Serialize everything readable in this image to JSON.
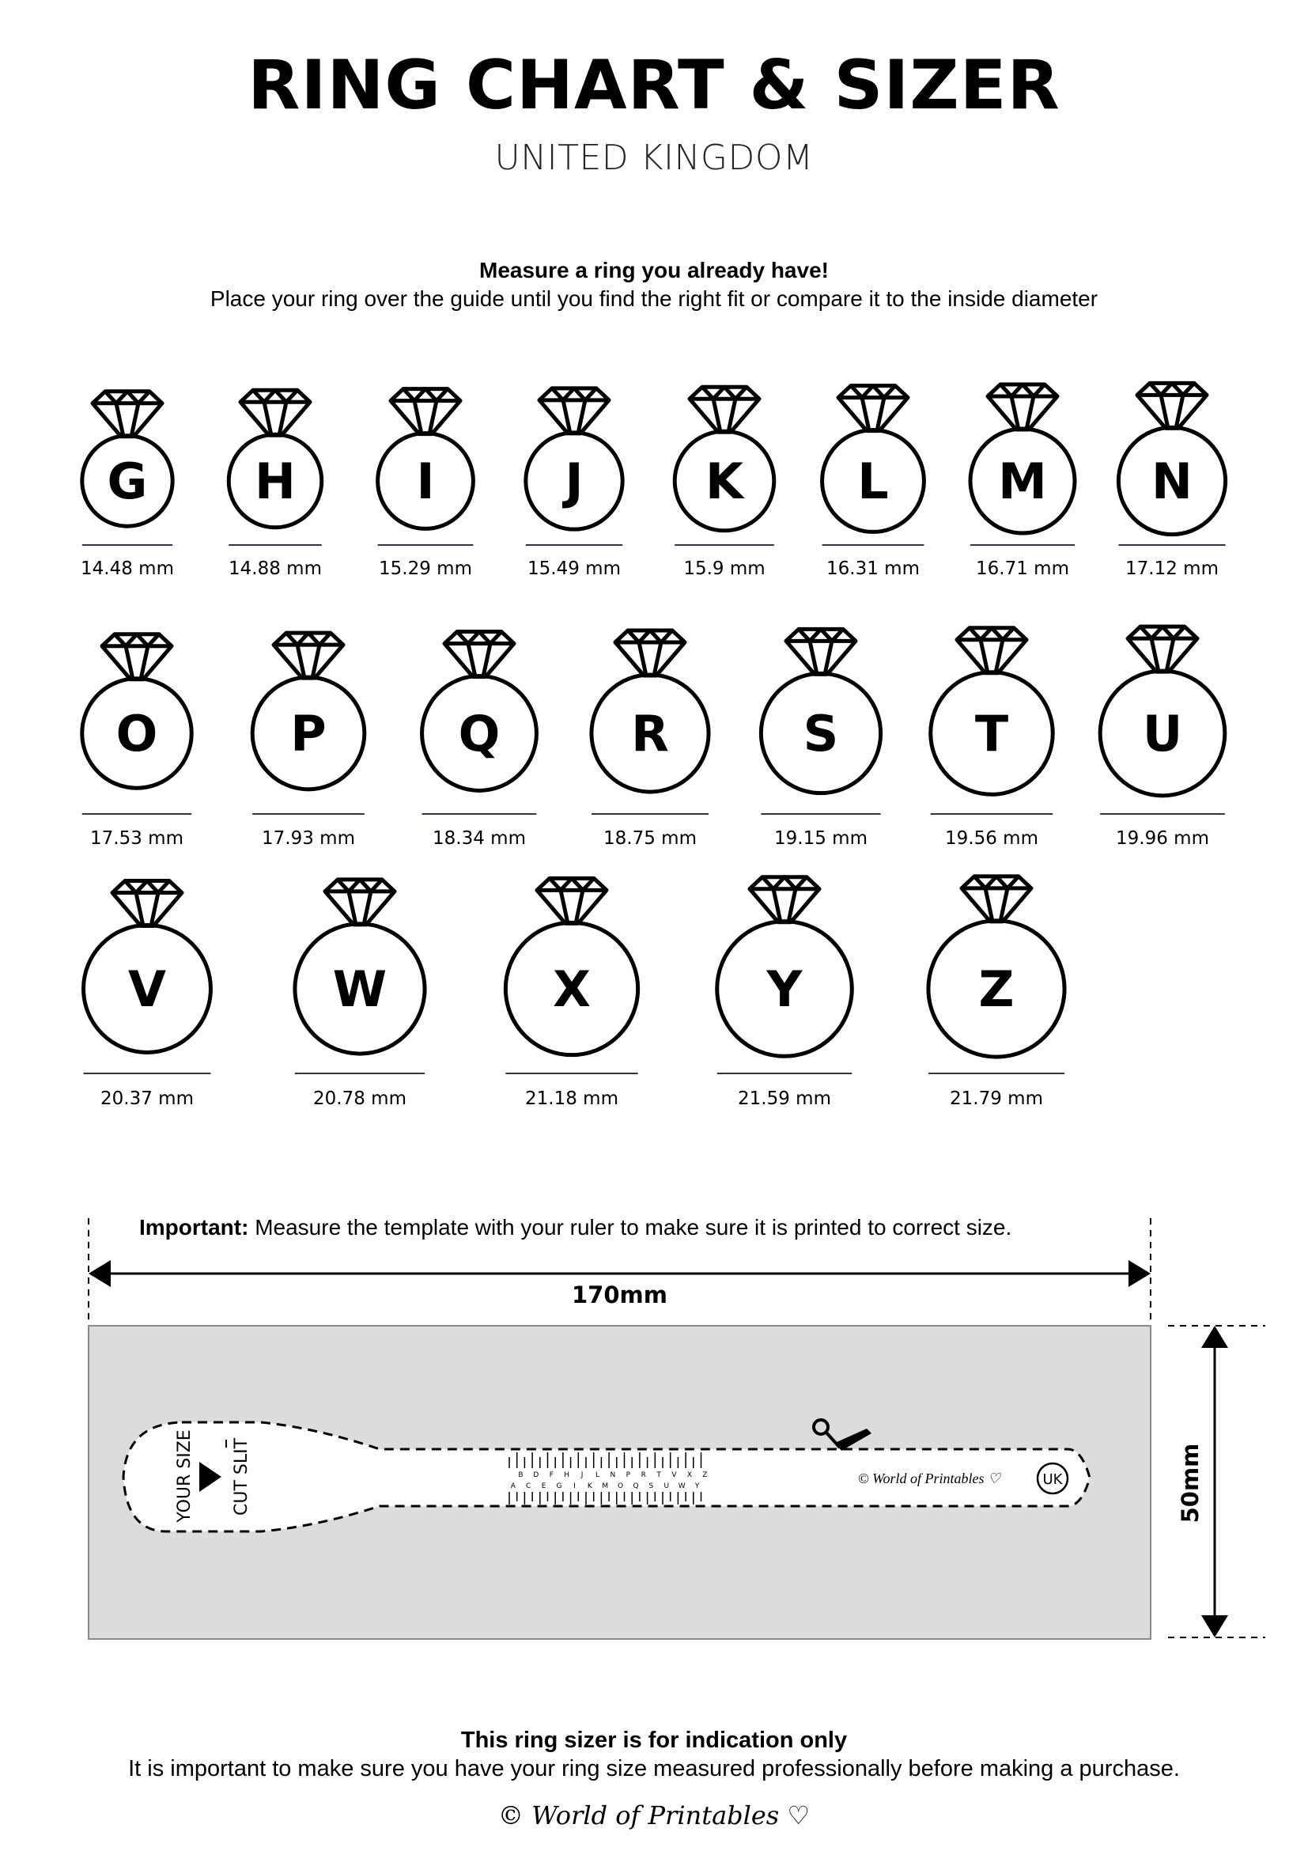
{
  "header": {
    "title": "RING CHART & SIZER",
    "subtitle": "UNITED KINGDOM"
  },
  "instructions": {
    "heading": "Measure a ring you already have!",
    "text": "Place your ring over the guide until you find the right fit or compare it to the inside diameter"
  },
  "rings": [
    {
      "size": "G",
      "mm": "14.48 mm"
    },
    {
      "size": "H",
      "mm": "14.88 mm"
    },
    {
      "size": "I",
      "mm": "15.29 mm"
    },
    {
      "size": "J",
      "mm": "15.49 mm"
    },
    {
      "size": "K",
      "mm": "15.9 mm"
    },
    {
      "size": "L",
      "mm": "16.31 mm"
    },
    {
      "size": "M",
      "mm": "16.71 mm"
    },
    {
      "size": "N",
      "mm": "17.12 mm"
    },
    {
      "size": "O",
      "mm": "17.53 mm"
    },
    {
      "size": "P",
      "mm": "17.93 mm"
    },
    {
      "size": "Q",
      "mm": "18.34 mm"
    },
    {
      "size": "R",
      "mm": "18.75 mm"
    },
    {
      "size": "S",
      "mm": "19.15 mm"
    },
    {
      "size": "T",
      "mm": "19.56 mm"
    },
    {
      "size": "U",
      "mm": "19.96 mm"
    },
    {
      "size": "V",
      "mm": "20.37 mm"
    },
    {
      "size": "W",
      "mm": "20.78 mm"
    },
    {
      "size": "X",
      "mm": "21.18 mm"
    },
    {
      "size": "Y",
      "mm": "21.59 mm"
    },
    {
      "size": "Z",
      "mm": "21.79 mm"
    }
  ],
  "template": {
    "important_label": "Important:",
    "important_text": " Measure the template with your ruler to make sure it is printed to correct size.",
    "width_label": "170mm",
    "height_label": "50mm",
    "background_color": "#dcdcdc",
    "sizer": {
      "your_size": "YOUR SIZE",
      "cut_slit": "CUT SLIT",
      "scale_top": [
        "B",
        "D",
        "F",
        "H",
        "J",
        "L",
        "N",
        "P",
        "R",
        "T",
        "V",
        "X",
        "Z"
      ],
      "scale_bottom": [
        "A",
        "C",
        "E",
        "G",
        "I",
        "K",
        "M",
        "O",
        "Q",
        "S",
        "U",
        "W",
        "Y"
      ],
      "logo": "© World of Printables ♡",
      "region_badge": "UK"
    }
  },
  "footer": {
    "heading": "This ring sizer is for indication only",
    "text": "It is important to make sure you have your ring size measured professionally before making a purchase.",
    "logo": "© World of Printables ♡"
  }
}
